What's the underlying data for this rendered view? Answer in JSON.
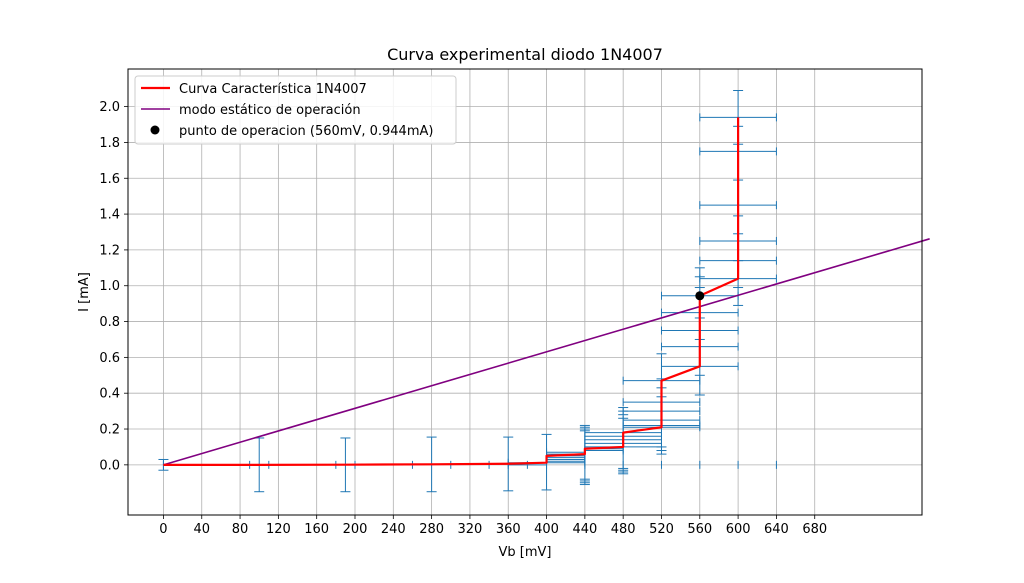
{
  "chart_data": {
    "type": "line",
    "title": "Curva experimental diodo 1N4007",
    "xlabel": "Vb [mV]",
    "ylabel": "I [mA]",
    "xlim": [
      -37,
      792
    ],
    "ylim": [
      -0.28,
      2.21
    ],
    "xticks": [
      0,
      40,
      80,
      120,
      160,
      200,
      240,
      280,
      320,
      360,
      400,
      440,
      480,
      520,
      560,
      600,
      640,
      680
    ],
    "xtick_labels": [
      "0",
      "40",
      "80",
      "120",
      "160",
      "200",
      "240",
      "280",
      "320",
      "360",
      "400",
      "440",
      "480",
      "520",
      "560",
      "600",
      "640",
      "680"
    ],
    "yticks": [
      0.0,
      0.2,
      0.4,
      0.6,
      0.8,
      1.0,
      1.2,
      1.4,
      1.6,
      1.8,
      2.0
    ],
    "ytick_labels": [
      "0.0",
      "0.2",
      "0.4",
      "0.6",
      "0.8",
      "1.0",
      "1.2",
      "1.4",
      "1.6",
      "1.8",
      "2.0"
    ],
    "grid": true,
    "legend_position": "top-left",
    "colors": {
      "curve": "#ff0000",
      "load_line": "#800080",
      "errorbars": "#1f77b4",
      "point": "#000000",
      "grid": "#b0b0b0"
    },
    "series": [
      {
        "name": "Curva Característica 1N4007",
        "style": "line",
        "x": [
          0,
          100,
          190,
          280,
          360,
          400,
          400,
          400,
          400,
          400,
          440,
          440,
          440,
          440,
          480,
          480,
          480,
          480,
          480,
          520,
          520,
          520,
          520,
          520,
          560,
          560,
          560,
          560,
          560,
          560,
          560,
          600,
          600,
          600,
          600,
          600,
          600,
          600,
          600
        ],
        "y": [
          0.0,
          0.0,
          0.001,
          0.003,
          0.006,
          0.012,
          0.02,
          0.03,
          0.04,
          0.05,
          0.06,
          0.07,
          0.08,
          0.09,
          0.1,
          0.12,
          0.14,
          0.16,
          0.18,
          0.21,
          0.25,
          0.3,
          0.35,
          0.47,
          0.55,
          0.6,
          0.66,
          0.75,
          0.85,
          0.944,
          0.944,
          1.04,
          1.14,
          1.25,
          1.45,
          1.6,
          1.75,
          1.94,
          1.94
        ]
      },
      {
        "name": "modo estático de operación",
        "style": "line",
        "x": [
          0,
          800
        ],
        "y": [
          0.0,
          1.262
        ]
      },
      {
        "name": "punto de operacion (560mV, 0.944mA)",
        "style": "point",
        "x": [
          560
        ],
        "y": [
          0.944
        ]
      }
    ],
    "errorbars": {
      "horizontal": [
        {
          "y": 0.0,
          "x1": 360,
          "x2": 400
        },
        {
          "y": 0.012,
          "x1": 360,
          "x2": 440
        },
        {
          "y": 0.02,
          "x1": 400,
          "x2": 440
        },
        {
          "y": 0.03,
          "x1": 400,
          "x2": 440
        },
        {
          "y": 0.04,
          "x1": 400,
          "x2": 440
        },
        {
          "y": 0.05,
          "x1": 400,
          "x2": 440
        },
        {
          "y": 0.06,
          "x1": 400,
          "x2": 440
        },
        {
          "y": 0.07,
          "x1": 400,
          "x2": 440
        },
        {
          "y": 0.08,
          "x1": 440,
          "x2": 480
        },
        {
          "y": 0.09,
          "x1": 440,
          "x2": 480
        },
        {
          "y": 0.1,
          "x1": 440,
          "x2": 520
        },
        {
          "y": 0.12,
          "x1": 440,
          "x2": 520
        },
        {
          "y": 0.14,
          "x1": 440,
          "x2": 520
        },
        {
          "y": 0.16,
          "x1": 440,
          "x2": 520
        },
        {
          "y": 0.18,
          "x1": 440,
          "x2": 520
        },
        {
          "y": 0.21,
          "x1": 480,
          "x2": 560
        },
        {
          "y": 0.22,
          "x1": 480,
          "x2": 560
        },
        {
          "y": 0.25,
          "x1": 480,
          "x2": 560
        },
        {
          "y": 0.3,
          "x1": 480,
          "x2": 560
        },
        {
          "y": 0.35,
          "x1": 480,
          "x2": 560
        },
        {
          "y": 0.47,
          "x1": 480,
          "x2": 560
        },
        {
          "y": 0.55,
          "x1": 520,
          "x2": 600
        },
        {
          "y": 0.66,
          "x1": 520,
          "x2": 600
        },
        {
          "y": 0.75,
          "x1": 520,
          "x2": 600
        },
        {
          "y": 0.85,
          "x1": 520,
          "x2": 600
        },
        {
          "y": 0.944,
          "x1": 520,
          "x2": 600
        },
        {
          "y": 1.04,
          "x1": 560,
          "x2": 640
        },
        {
          "y": 1.14,
          "x1": 560,
          "x2": 640
        },
        {
          "y": 1.25,
          "x1": 560,
          "x2": 640
        },
        {
          "y": 1.45,
          "x1": 560,
          "x2": 640
        },
        {
          "y": 1.75,
          "x1": 560,
          "x2": 640
        },
        {
          "y": 1.94,
          "x1": 560,
          "x2": 640
        }
      ],
      "vertical": [
        {
          "x": 0,
          "y1": -0.03,
          "y2": 0.03
        },
        {
          "x": 100,
          "y1": -0.15,
          "y2": 0.15
        },
        {
          "x": 190,
          "y1": -0.15,
          "y2": 0.15
        },
        {
          "x": 280,
          "y1": -0.15,
          "y2": 0.155
        },
        {
          "x": 360,
          "y1": -0.145,
          "y2": 0.155
        },
        {
          "x": 400,
          "y1": -0.14,
          "y2": 0.17
        },
        {
          "x": 440,
          "y1": -0.11,
          "y2": 0.22
        },
        {
          "x": 480,
          "y1": -0.05,
          "y2": 0.32
        },
        {
          "x": 520,
          "y1": 0.06,
          "y2": 0.62
        },
        {
          "x": 560,
          "y1": 0.39,
          "y2": 1.1
        },
        {
          "x": 600,
          "y1": 0.89,
          "y2": 2.09
        }
      ],
      "caps_x": [
        0,
        90,
        110,
        180,
        200,
        260,
        300,
        340,
        380,
        440,
        480,
        520,
        560,
        600,
        640
      ],
      "caps_y": [
        0.0
      ]
    }
  }
}
